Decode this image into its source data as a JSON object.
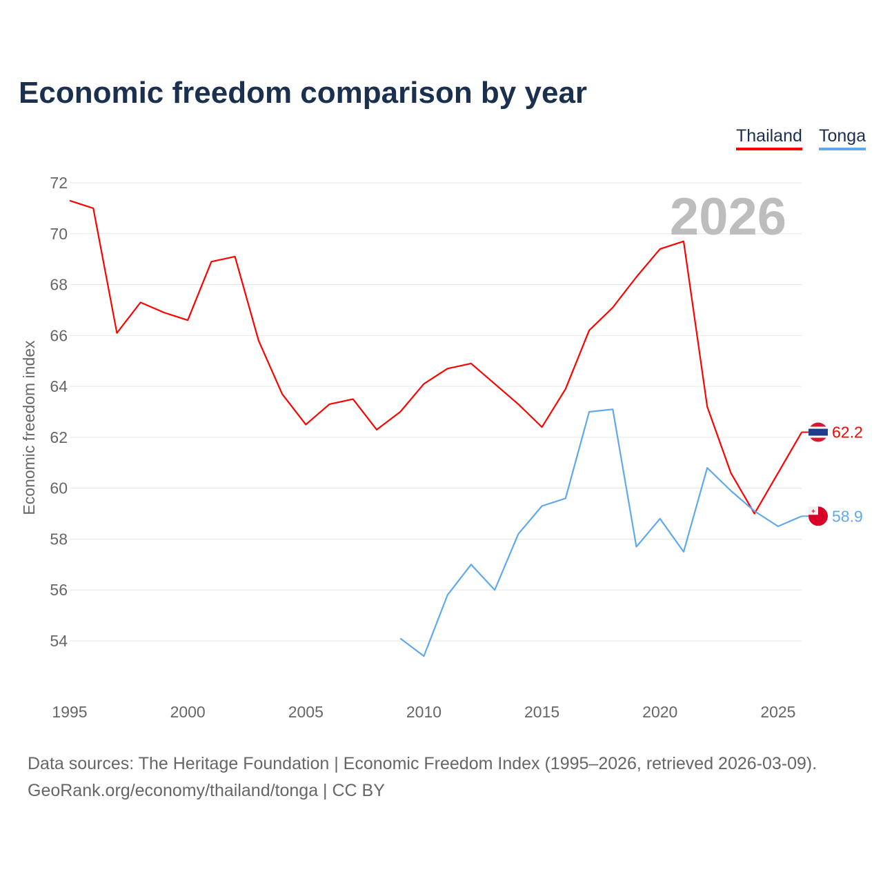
{
  "title": "Economic freedom comparison by year",
  "footer": {
    "line1": "Data sources: The Heritage Foundation | Economic Freedom Index (1995–2026, retrieved 2026-03-09).",
    "line2": "GeoRank.org/economy/thailand/tonga | CC BY"
  },
  "chart_data": {
    "type": "line",
    "title": "Economic freedom comparison by year",
    "ylabel": "Economic freedom index",
    "xlabel": "",
    "ylim": [
      52,
      72
    ],
    "xlim": [
      1995,
      2026
    ],
    "yticks": [
      54,
      56,
      58,
      60,
      62,
      64,
      66,
      68,
      70,
      72
    ],
    "xticks": [
      1995,
      2000,
      2005,
      2010,
      2015,
      2020,
      2025
    ],
    "year_label": "2026",
    "legend_position": "top-right",
    "series": [
      {
        "name": "Thailand",
        "color": "#ff0000",
        "end_label": "62.2",
        "x": [
          1995,
          1996,
          1997,
          1998,
          1999,
          2000,
          2001,
          2002,
          2003,
          2004,
          2005,
          2006,
          2007,
          2008,
          2009,
          2010,
          2011,
          2012,
          2013,
          2014,
          2015,
          2016,
          2017,
          2018,
          2019,
          2020,
          2021,
          2022,
          2023,
          2024,
          2025,
          2026
        ],
        "values": [
          71.3,
          71.0,
          66.1,
          67.3,
          66.9,
          66.6,
          68.9,
          69.1,
          65.8,
          63.7,
          62.5,
          63.3,
          63.5,
          62.3,
          63.0,
          64.1,
          64.7,
          64.9,
          64.1,
          63.3,
          62.4,
          63.9,
          66.2,
          67.1,
          68.3,
          69.4,
          69.7,
          63.2,
          60.6,
          59.0,
          60.6,
          62.2
        ]
      },
      {
        "name": "Tonga",
        "color": "#5fa8ec",
        "end_label": "58.9",
        "x": [
          2009,
          2010,
          2011,
          2012,
          2013,
          2014,
          2015,
          2016,
          2017,
          2018,
          2019,
          2020,
          2021,
          2022,
          2023,
          2024,
          2025,
          2026
        ],
        "values": [
          54.1,
          53.4,
          55.8,
          57.0,
          56.0,
          58.2,
          59.3,
          59.6,
          63.0,
          63.1,
          57.7,
          58.8,
          57.5,
          60.8,
          59.9,
          59.1,
          58.5,
          58.9
        ]
      }
    ]
  }
}
